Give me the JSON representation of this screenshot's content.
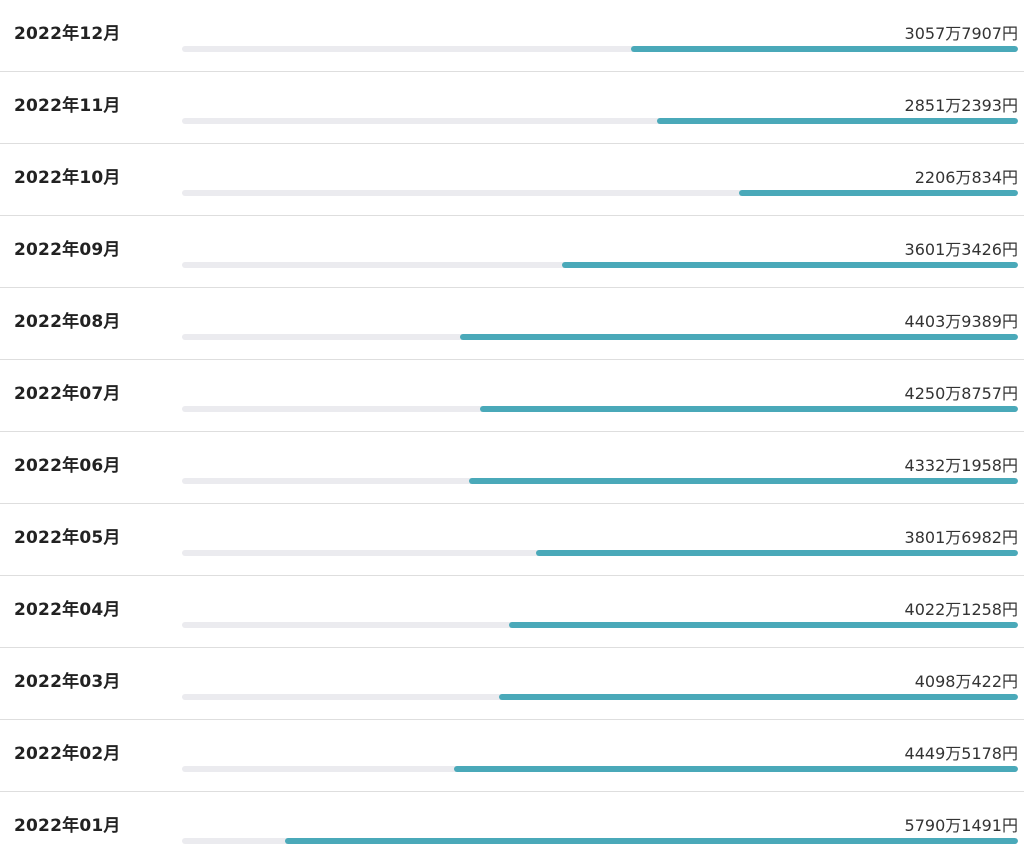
{
  "colors": {
    "bar_fill": "#4aa9b9",
    "bar_track": "#ebebef",
    "divider": "#dedede",
    "text": "#222222"
  },
  "chart_data": {
    "type": "bar",
    "orientation": "horizontal",
    "title": "",
    "xlabel": "",
    "ylabel": "",
    "xlim": [
      0,
      66000000
    ],
    "grid": false,
    "legend": "none",
    "categories": [
      "2022年12月",
      "2022年11月",
      "2022年10月",
      "2022年09月",
      "2022年08月",
      "2022年07月",
      "2022年06月",
      "2022年05月",
      "2022年04月",
      "2022年03月",
      "2022年02月",
      "2022年01月"
    ],
    "values": [
      30577907,
      28512393,
      22060834,
      36013426,
      44039389,
      42508757,
      43321958,
      38016982,
      40221258,
      40980422,
      44495178,
      57901491
    ],
    "value_labels": [
      "3057万7907円",
      "2851万2393円",
      "2206万834円",
      "3601万3426円",
      "4403万9389円",
      "4250万8757円",
      "4332万1958円",
      "3801万6982円",
      "4022万1258円",
      "4098万422円",
      "4449万5178円",
      "5790万1491円"
    ]
  }
}
